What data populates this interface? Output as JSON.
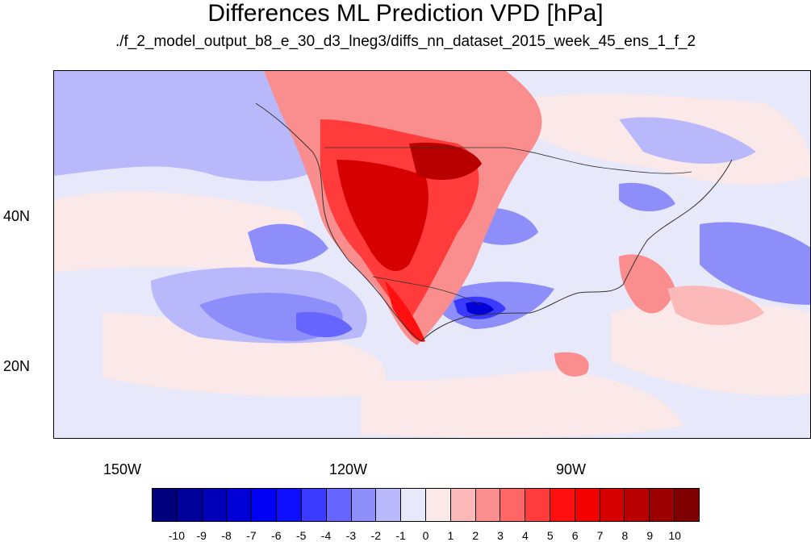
{
  "title": "Differences ML Prediction VPD [hPa]",
  "subtitle": "./f_2_model_output_b8_e_30_d3_lneg3/diffs_nn_dataset_2015_week_45_ens_1_f_2",
  "map": {
    "lon_labels": [
      "150W",
      "120W",
      "90W"
    ],
    "lat_labels": [
      "40N",
      "20N"
    ],
    "background_color": "#e8e8fb"
  },
  "colorbar": {
    "colors": [
      "#00007f",
      "#00009c",
      "#0000b8",
      "#0000d6",
      "#0000f2",
      "#0f0fff",
      "#3b3bff",
      "#6666ff",
      "#8e8efa",
      "#b8b8fb",
      "#e8e8fb",
      "#fbe8e8",
      "#fbb8b8",
      "#fa8e8e",
      "#ff6666",
      "#ff3b3b",
      "#ff0f0f",
      "#f20000",
      "#d60000",
      "#b80000",
      "#9c0000",
      "#7f0000"
    ],
    "labels": [
      "-10",
      "-9",
      "-8",
      "-7",
      "-6",
      "-5",
      "-4",
      "-3",
      "-2",
      "-1",
      "0",
      "1",
      "2",
      "3",
      "4",
      "5",
      "6",
      "7",
      "8",
      "9",
      "10"
    ]
  }
}
